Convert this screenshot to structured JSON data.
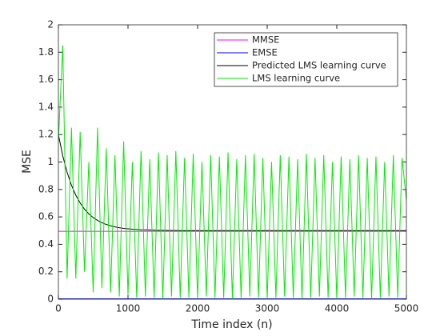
{
  "chart_data": {
    "type": "line",
    "xlabel": "Time index (n)",
    "ylabel": "MSE",
    "x": [
      0,
      62.5,
      125,
      187.5,
      250,
      312.5,
      375,
      437.5,
      500,
      562.5,
      625,
      687.5,
      750,
      812.5,
      875,
      937.5,
      1000,
      1062.5,
      1125,
      1187.5,
      1250,
      1312.5,
      1375,
      1437.5,
      1500,
      1562.5,
      1625,
      1687.5,
      1750,
      1812.5,
      1875,
      1937.5,
      2000,
      2062.5,
      2125,
      2187.5,
      2250,
      2312.5,
      2375,
      2437.5,
      2500,
      2562.5,
      2625,
      2687.5,
      2750,
      2812.5,
      2875,
      2937.5,
      3000,
      3062.5,
      3125,
      3187.5,
      3250,
      3312.5,
      3375,
      3437.5,
      3500,
      3562.5,
      3625,
      3687.5,
      3750,
      3812.5,
      3875,
      3937.5,
      4000,
      4062.5,
      4125,
      4187.5,
      4250,
      4312.5,
      4375,
      4437.5,
      4500,
      4562.5,
      4625,
      4687.5,
      4750,
      4812.5,
      4875,
      4937.5,
      5000
    ],
    "series": [
      {
        "name": "MMSE",
        "color": "#ff00ff",
        "values": [
          0.495,
          0.495,
          0.495,
          0.495,
          0.495,
          0.495,
          0.495,
          0.495,
          0.495,
          0.495,
          0.495,
          0.495,
          0.495,
          0.495,
          0.495,
          0.495,
          0.495,
          0.495,
          0.495,
          0.495,
          0.495,
          0.495,
          0.495,
          0.495,
          0.495,
          0.495,
          0.495,
          0.495,
          0.495,
          0.495,
          0.495,
          0.495,
          0.495,
          0.495,
          0.495,
          0.495,
          0.495,
          0.495,
          0.495,
          0.495,
          0.495,
          0.495,
          0.495,
          0.495,
          0.495,
          0.495,
          0.495,
          0.495,
          0.495,
          0.495,
          0.495,
          0.495,
          0.495,
          0.495,
          0.495,
          0.495,
          0.495,
          0.495,
          0.495,
          0.495,
          0.495,
          0.495,
          0.495,
          0.495,
          0.495,
          0.495,
          0.495,
          0.495,
          0.495,
          0.495,
          0.495,
          0.495,
          0.495,
          0.495,
          0.495,
          0.495,
          0.495,
          0.495,
          0.495,
          0.495,
          0.495
        ]
      },
      {
        "name": "EMSE",
        "color": "#0000ff",
        "values": [
          0.003,
          0.003,
          0.003,
          0.003,
          0.003,
          0.003,
          0.003,
          0.003,
          0.003,
          0.003,
          0.003,
          0.003,
          0.003,
          0.003,
          0.003,
          0.003,
          0.003,
          0.003,
          0.003,
          0.003,
          0.003,
          0.003,
          0.003,
          0.003,
          0.003,
          0.003,
          0.003,
          0.003,
          0.003,
          0.003,
          0.003,
          0.003,
          0.003,
          0.003,
          0.003,
          0.003,
          0.003,
          0.003,
          0.003,
          0.003,
          0.003,
          0.003,
          0.003,
          0.003,
          0.003,
          0.003,
          0.003,
          0.003,
          0.003,
          0.003,
          0.003,
          0.003,
          0.003,
          0.003,
          0.003,
          0.003,
          0.003,
          0.003,
          0.003,
          0.003,
          0.003,
          0.003,
          0.003,
          0.003,
          0.003,
          0.003,
          0.003,
          0.003,
          0.003,
          0.003,
          0.003,
          0.003,
          0.003,
          0.003,
          0.003,
          0.003,
          0.003,
          0.003,
          0.003,
          0.003,
          0.003
        ]
      },
      {
        "name": "Predicted LMS learning curve",
        "color": "#000000",
        "values": [
          1.2,
          1.045,
          0.925,
          0.831,
          0.758,
          0.701,
          0.656,
          0.622,
          0.595,
          0.574,
          0.557,
          0.545,
          0.535,
          0.527,
          0.521,
          0.516,
          0.513,
          0.51,
          0.508,
          0.506,
          0.505,
          0.504,
          0.503,
          0.502,
          0.502,
          0.501,
          0.501,
          0.501,
          0.5,
          0.5,
          0.5,
          0.5,
          0.5,
          0.5,
          0.5,
          0.5,
          0.5,
          0.5,
          0.5,
          0.5,
          0.5,
          0.5,
          0.5,
          0.5,
          0.5,
          0.5,
          0.5,
          0.5,
          0.5,
          0.5,
          0.5,
          0.5,
          0.5,
          0.5,
          0.5,
          0.5,
          0.5,
          0.5,
          0.5,
          0.5,
          0.5,
          0.5,
          0.5,
          0.5,
          0.5,
          0.5,
          0.5,
          0.5,
          0.5,
          0.5,
          0.5,
          0.5,
          0.5,
          0.5,
          0.5,
          0.5,
          0.5,
          0.5,
          0.5,
          0.5,
          0.5
        ]
      },
      {
        "name": "LMS learning curve",
        "color": "#00ee00",
        "values": [
          1.15,
          1.85,
          0.15,
          1.25,
          0.15,
          1.22,
          0.2,
          1.0,
          0.05,
          1.25,
          0.08,
          1.1,
          0.05,
          1.05,
          0.02,
          1.15,
          0.03,
          1.0,
          0.01,
          1.08,
          0.02,
          1.02,
          0.01,
          1.07,
          0.0,
          1.05,
          0.02,
          1.08,
          0.01,
          1.03,
          0.01,
          1.06,
          0.0,
          1.0,
          0.02,
          1.05,
          0.01,
          1.04,
          0.01,
          1.07,
          0.0,
          1.02,
          0.01,
          1.05,
          0.02,
          1.06,
          0.01,
          1.03,
          0.0,
          1.0,
          0.01,
          1.05,
          0.02,
          1.04,
          0.01,
          1.02,
          0.0,
          1.06,
          0.01,
          1.03,
          0.02,
          1.05,
          0.01,
          1.0,
          0.0,
          1.04,
          0.01,
          1.02,
          0.02,
          1.05,
          0.01,
          1.03,
          0.0,
          1.04,
          0.01,
          1.0,
          0.02,
          1.05,
          0.01,
          1.03,
          0.72
        ]
      }
    ],
    "xlim": [
      0,
      5000
    ],
    "xticks": [
      0,
      1000,
      2000,
      3000,
      4000,
      5000
    ],
    "ylim": [
      0,
      2
    ],
    "yticks": [
      0,
      0.2,
      0.4,
      0.6,
      0.8,
      1,
      1.2,
      1.4,
      1.6,
      1.8,
      2
    ],
    "legend": "northeast",
    "grid": false
  }
}
